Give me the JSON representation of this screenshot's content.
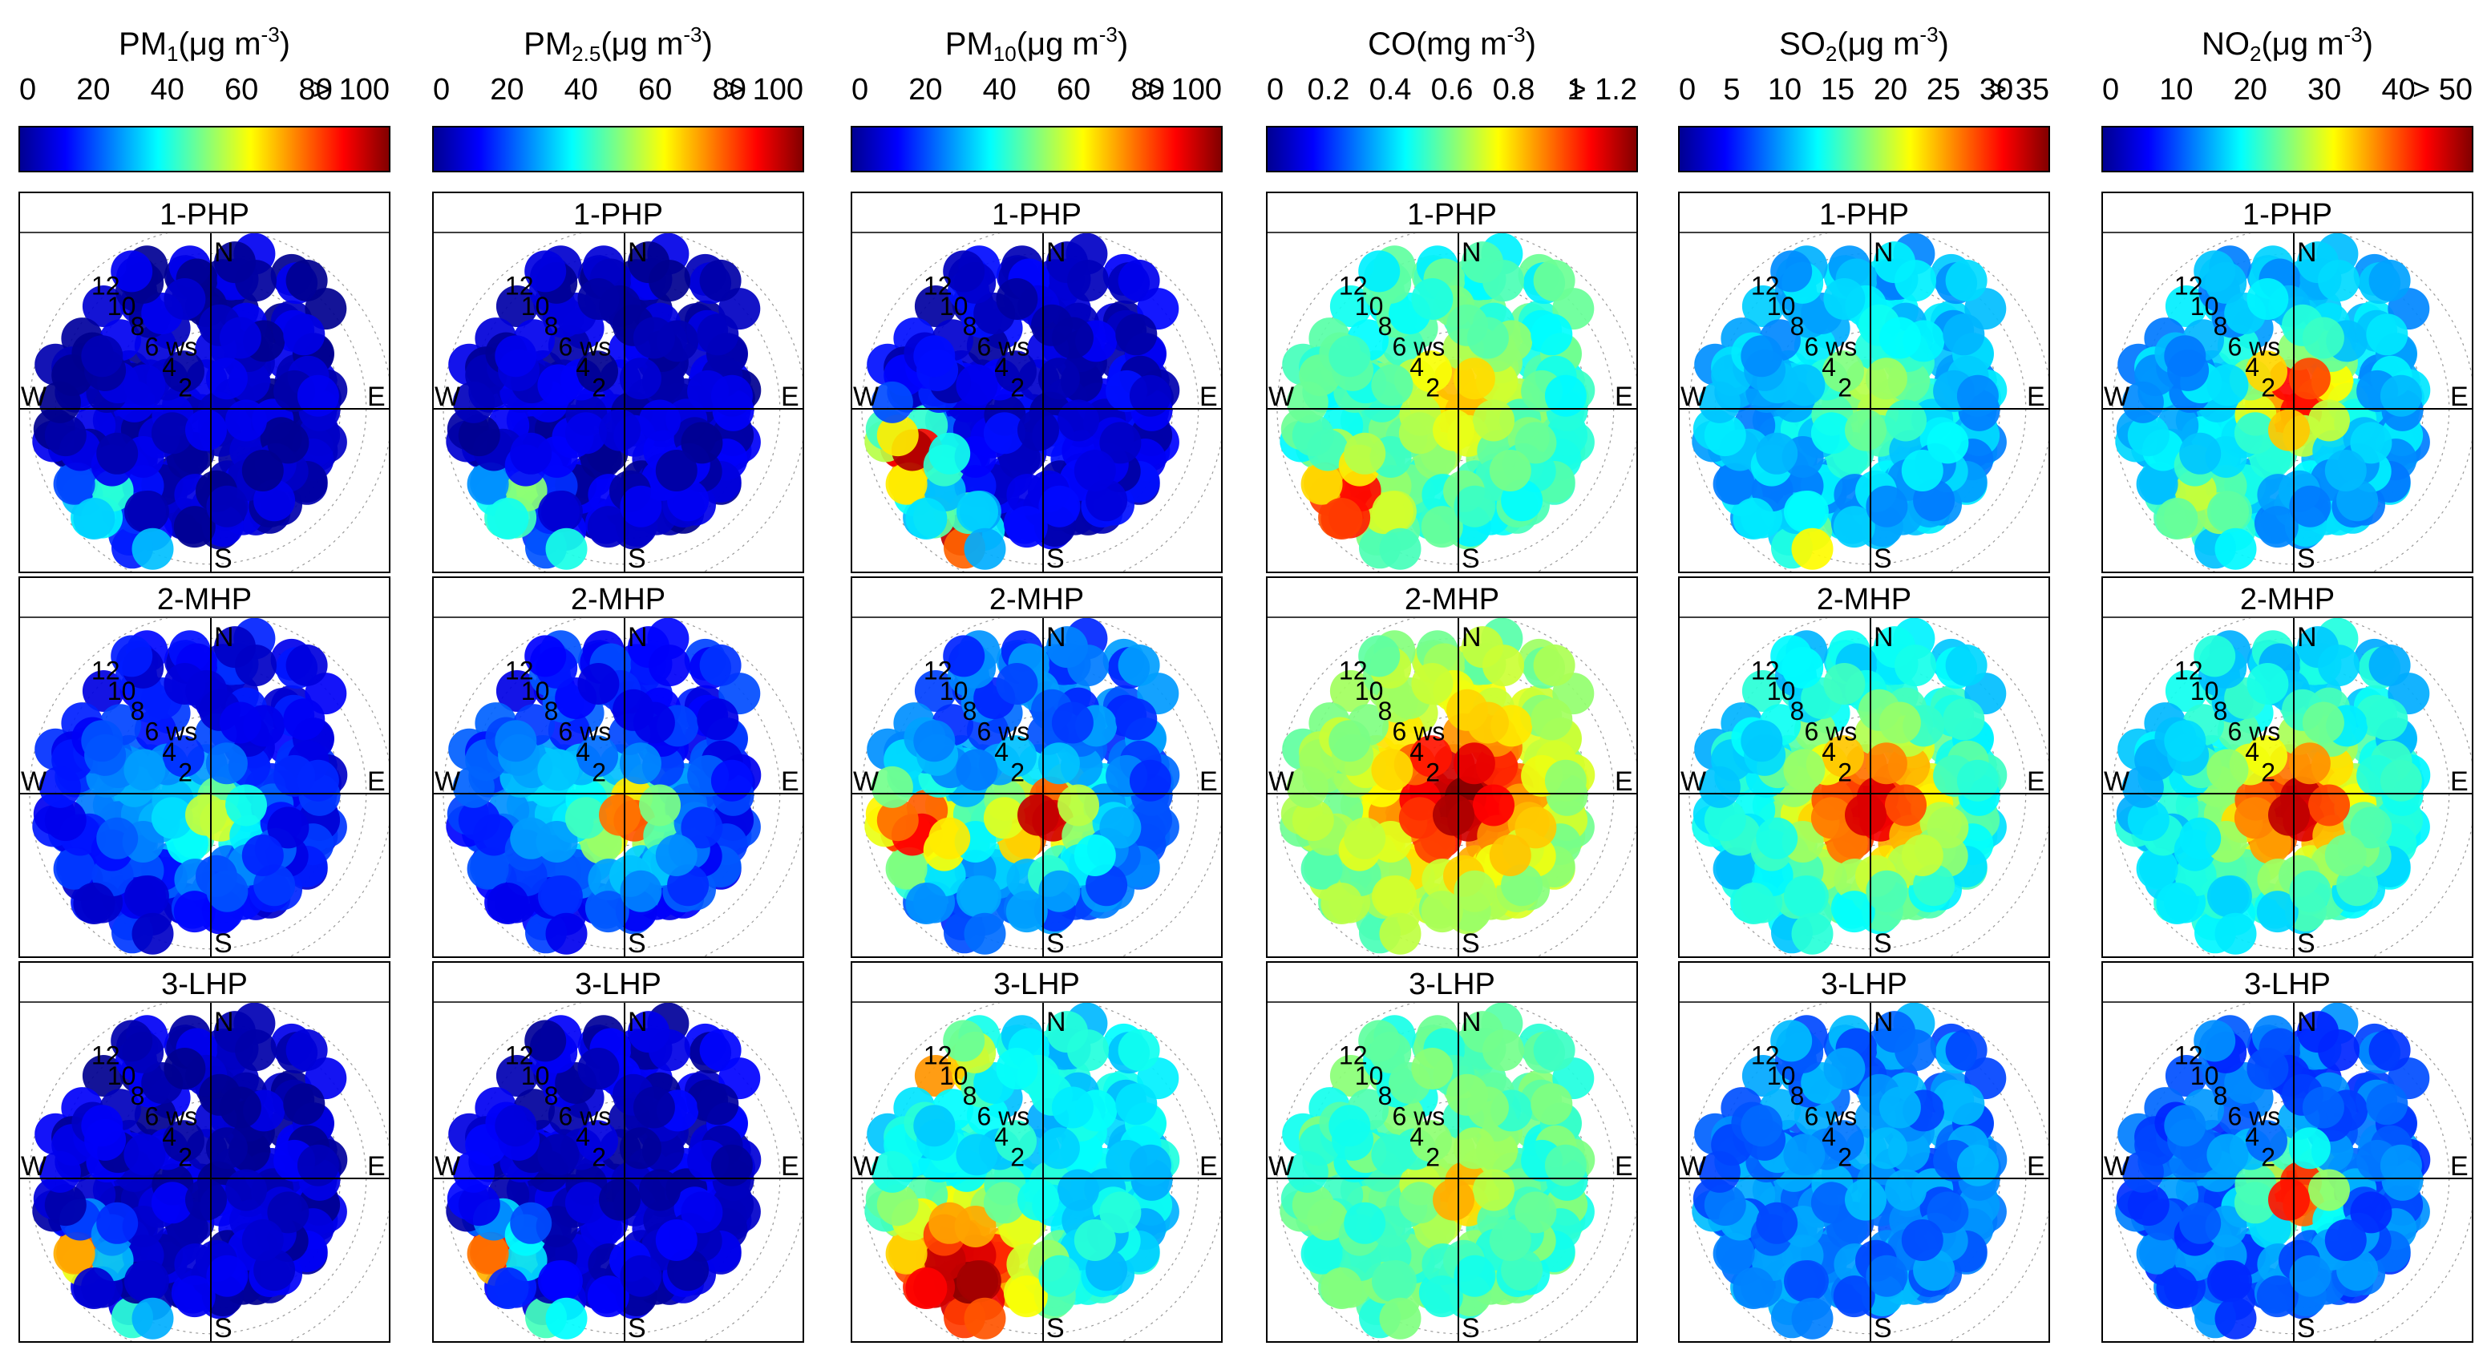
{
  "chart_data": {
    "type": "polar-heatmap",
    "radial_variable": "ws",
    "radial_ticks": [
      "2",
      "4",
      "6 ws",
      "8",
      "10",
      "12"
    ],
    "radial_max": 14,
    "compass": [
      "N",
      "E",
      "S",
      "W"
    ],
    "periods": [
      "1-PHP",
      "2-MHP",
      "3-LHP"
    ],
    "colormap": [
      "#00008f",
      "#0000ff",
      "#0080ff",
      "#00ffff",
      "#80ff80",
      "#ffff00",
      "#ff8000",
      "#ff0000",
      "#800000"
    ],
    "pollutants": [
      {
        "id": "pm1",
        "title": {
          "main": "PM",
          "sub": "1",
          "unit_open": "(μg m",
          "sup": "-3",
          "close": ")"
        },
        "ticks": [
          "0",
          "20",
          "40",
          "60",
          "80",
          "> 100"
        ],
        "range": [
          0,
          100
        ],
        "panels": [
          {
            "period": "1-PHP",
            "base": 0.05,
            "blobs": [
              {
                "dir": 230,
                "ws": 11,
                "val": 0.5,
                "spread": 1.6
              },
              {
                "dir": 200,
                "ws": 12,
                "val": 0.35,
                "spread": 1.2
              }
            ]
          },
          {
            "period": "2-MHP",
            "base": 0.12,
            "blobs": [
              {
                "dir": 180,
                "ws": 2,
                "val": 0.62,
                "spread": 2.5
              },
              {
                "dir": 270,
                "ws": 6,
                "val": 0.3,
                "spread": 3
              }
            ]
          },
          {
            "period": "3-LHP",
            "base": 0.06,
            "blobs": [
              {
                "dir": 240,
                "ws": 11,
                "val": 0.95,
                "spread": 1.3
              },
              {
                "dir": 205,
                "ws": 13,
                "val": 0.75,
                "spread": 1.0
              }
            ]
          }
        ]
      },
      {
        "id": "pm25",
        "title": {
          "main": "PM",
          "sub": "2.5",
          "unit_open": "(μg m",
          "sup": "-3",
          "close": ")"
        },
        "ticks": [
          "0",
          "20",
          "40",
          "60",
          "80",
          "> 100"
        ],
        "range": [
          0,
          100
        ],
        "panels": [
          {
            "period": "1-PHP",
            "base": 0.06,
            "blobs": [
              {
                "dir": 230,
                "ws": 11,
                "val": 0.62,
                "spread": 1.6
              },
              {
                "dir": 200,
                "ws": 12,
                "val": 0.45,
                "spread": 1.2
              }
            ]
          },
          {
            "period": "2-MHP",
            "base": 0.15,
            "blobs": [
              {
                "dir": 180,
                "ws": 2,
                "val": 0.85,
                "spread": 2.5
              },
              {
                "dir": 270,
                "ws": 6,
                "val": 0.35,
                "spread": 3
              }
            ]
          },
          {
            "period": "3-LHP",
            "base": 0.07,
            "blobs": [
              {
                "dir": 240,
                "ws": 11,
                "val": 1.0,
                "spread": 1.4
              },
              {
                "dir": 205,
                "ws": 13,
                "val": 0.85,
                "spread": 1.0
              }
            ]
          }
        ]
      },
      {
        "id": "pm10",
        "title": {
          "main": "PM",
          "sub": "10",
          "unit_open": "(μg m",
          "sup": "-3",
          "close": ")"
        },
        "ticks": [
          "0",
          "20",
          "40",
          "60",
          "80",
          "> 100"
        ],
        "range": [
          0,
          100
        ],
        "panels": [
          {
            "period": "1-PHP",
            "base": 0.08,
            "blobs": [
              {
                "dir": 250,
                "ws": 11,
                "val": 1.0,
                "spread": 2.0
              },
              {
                "dir": 215,
                "ws": 12,
                "val": 1.0,
                "spread": 1.6
              }
            ]
          },
          {
            "period": "2-MHP",
            "base": 0.22,
            "blobs": [
              {
                "dir": 180,
                "ws": 2,
                "val": 0.95,
                "spread": 2.5
              },
              {
                "dir": 255,
                "ws": 10,
                "val": 0.9,
                "spread": 2.5
              }
            ]
          },
          {
            "period": "3-LHP",
            "base": 0.35,
            "blobs": [
              {
                "dir": 220,
                "ws": 10,
                "val": 1.0,
                "spread": 4
              },
              {
                "dir": 320,
                "ws": 11,
                "val": 0.9,
                "spread": 1.5
              }
            ]
          }
        ]
      },
      {
        "id": "co",
        "title": {
          "main": "CO(mg m",
          "sub": "",
          "unit_open": "",
          "sup": "-3",
          "close": ")"
        },
        "ticks": [
          "0",
          "0.2",
          "0.4",
          "0.6",
          "0.8",
          "1",
          "> 1.2"
        ],
        "range": [
          0,
          1.2
        ],
        "panels": [
          {
            "period": "1-PHP",
            "base": 0.42,
            "blobs": [
              {
                "dir": 230,
                "ws": 11,
                "val": 0.95,
                "spread": 2
              },
              {
                "dir": 0,
                "ws": 1,
                "val": 0.72,
                "spread": 3
              }
            ]
          },
          {
            "period": "2-MHP",
            "base": 0.5,
            "blobs": [
              {
                "dir": 90,
                "ws": 0,
                "val": 1.0,
                "spread": 4
              }
            ]
          },
          {
            "period": "3-LHP",
            "base": 0.45,
            "blobs": [
              {
                "dir": 180,
                "ws": 1,
                "val": 0.72,
                "spread": 2
              }
            ]
          }
        ]
      },
      {
        "id": "so2",
        "title": {
          "main": "SO",
          "sub": "2",
          "unit_open": "(μg m",
          "sup": "-3",
          "close": ")"
        },
        "ticks": [
          "0",
          "5",
          "10",
          "15",
          "20",
          "25",
          "30",
          "> 35"
        ],
        "range": [
          0,
          35
        ],
        "panels": [
          {
            "period": "1-PHP",
            "base": 0.3,
            "blobs": [
              {
                "dir": 200,
                "ws": 12,
                "val": 0.65,
                "spread": 1.5
              },
              {
                "dir": 0,
                "ws": 1,
                "val": 0.58,
                "spread": 3
              }
            ]
          },
          {
            "period": "2-MHP",
            "base": 0.35,
            "blobs": [
              {
                "dir": 180,
                "ws": 1,
                "val": 0.92,
                "spread": 4
              }
            ]
          },
          {
            "period": "3-LHP",
            "base": 0.25,
            "blobs": []
          }
        ]
      },
      {
        "id": "no2",
        "title": {
          "main": "NO",
          "sub": "2",
          "unit_open": "(μg m",
          "sup": "-3",
          "close": ")"
        },
        "ticks": [
          "0",
          "10",
          "20",
          "30",
          "40",
          "> 50"
        ],
        "range": [
          0,
          50
        ],
        "panels": [
          {
            "period": "1-PHP",
            "base": 0.3,
            "blobs": [
              {
                "dir": 0,
                "ws": 1,
                "val": 0.95,
                "spread": 2.5
              },
              {
                "dir": 225,
                "ws": 10,
                "val": 0.6,
                "spread": 2
              }
            ]
          },
          {
            "period": "2-MHP",
            "base": 0.35,
            "blobs": [
              {
                "dir": 180,
                "ws": 1,
                "val": 0.95,
                "spread": 3.5
              }
            ]
          },
          {
            "period": "3-LHP",
            "base": 0.22,
            "blobs": [
              {
                "dir": 180,
                "ws": 1,
                "val": 0.9,
                "spread": 2
              }
            ]
          }
        ]
      }
    ]
  }
}
